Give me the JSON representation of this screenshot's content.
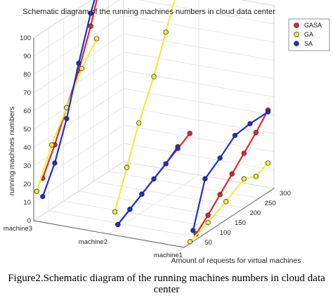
{
  "caption": "Figure2.Schematic diagram of the running machines numbers in cloud data center",
  "chart_data": {
    "type": "line3d",
    "title": "Schematic diagram of the running machines numbers in cloud data center",
    "xlabel": "Amount of requests for virtual machines",
    "ylabel": "",
    "zlabel": "running machines numbers",
    "x_ticks": [
      50,
      100,
      150,
      200,
      250,
      300
    ],
    "y_ticks": [
      "machine1",
      "machine2",
      "machine3"
    ],
    "z_ticks": [
      0,
      10,
      20,
      30,
      40,
      50,
      60,
      70,
      80,
      90,
      100
    ],
    "xlim": [
      0,
      300
    ],
    "zlim": [
      0,
      100
    ],
    "grid": true,
    "legend_position": "top-right",
    "series": [
      {
        "name": "GASA",
        "color": "#e8232a",
        "marker_fill": "#e8232a",
        "lines": [
          {
            "machine": "machine1",
            "points": [
              [
                40,
                3
              ],
              [
                80,
                9
              ],
              [
                120,
                16
              ],
              [
                160,
                23
              ],
              [
                200,
                30
              ],
              [
                240,
                37
              ],
              [
                280,
                45
              ]
            ]
          },
          {
            "machine": "machine2",
            "points": [
              [
                30,
                2
              ],
              [
                70,
                6
              ],
              [
                110,
                10
              ],
              [
                150,
                14
              ],
              [
                190,
                18
              ],
              [
                230,
                22
              ],
              [
                270,
                26
              ]
            ]
          },
          {
            "machine": "machine3",
            "points": [
              [
                30,
                20
              ],
              [
                70,
                34
              ],
              [
                110,
                50
              ],
              [
                150,
                66
              ],
              [
                190,
                86
              ],
              [
                230,
                110
              ]
            ]
          }
        ]
      },
      {
        "name": "GA",
        "color": "#f0ee3a",
        "marker_fill": "#f0ee3a",
        "lines": [
          {
            "machine": "machine1",
            "points": [
              [
                20,
                1
              ],
              [
                80,
                5
              ],
              [
                140,
                10
              ],
              [
                200,
                16
              ],
              [
                240,
                13
              ],
              [
                280,
                16
              ]
            ]
          },
          {
            "machine": "machine2",
            "points": [
              [
                20,
                10
              ],
              [
                60,
                30
              ],
              [
                100,
                50
              ],
              [
                150,
                70
              ],
              [
                190,
                90
              ],
              [
                230,
                110
              ]
            ]
          },
          {
            "machine": "machine3",
            "points": [
              [
                10,
                15
              ],
              [
                60,
                35
              ],
              [
                110,
                50
              ],
              [
                160,
                66
              ],
              [
                210,
                77
              ]
            ]
          }
        ]
      },
      {
        "name": "SA",
        "color": "#1a2fd6",
        "marker_fill": "#1a2fd6",
        "lines": [
          {
            "machine": "machine1",
            "points": [
              [
                30,
                6
              ],
              [
                70,
                30
              ],
              [
                120,
                36
              ],
              [
                170,
                43
              ],
              [
                220,
                44
              ],
              [
                280,
                44
              ]
            ]
          },
          {
            "machine": "machine2",
            "points": [
              [
                30,
                2
              ],
              [
                70,
                6
              ],
              [
                110,
                10
              ],
              [
                150,
                14
              ],
              [
                190,
                18
              ],
              [
                230,
                23
              ]
            ]
          },
          {
            "machine": "machine3",
            "points": [
              [
                30,
                10
              ],
              [
                70,
                24
              ],
              [
                110,
                44
              ],
              [
                150,
                70
              ],
              [
                190,
                93
              ],
              [
                230,
                112
              ]
            ]
          }
        ]
      }
    ]
  }
}
